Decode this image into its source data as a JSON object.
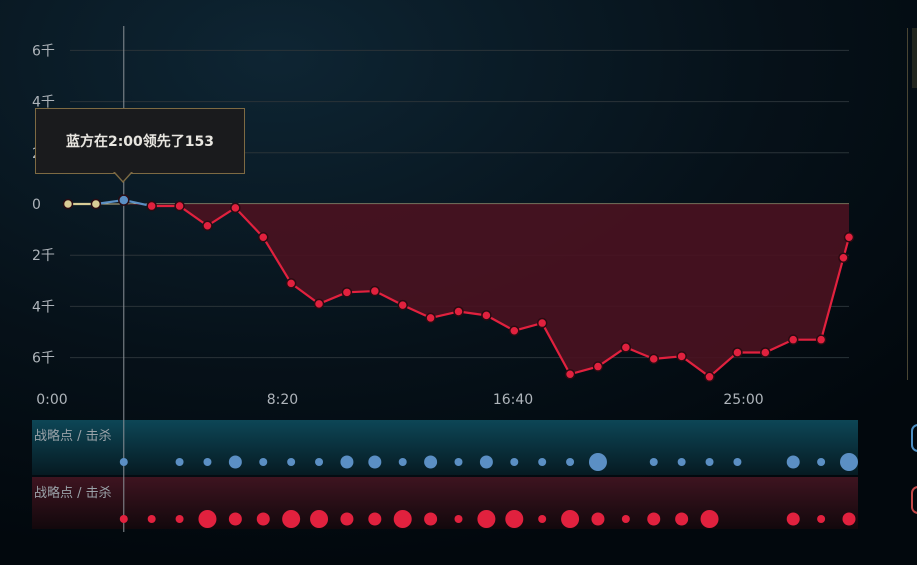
{
  "tooltip": {
    "text": "蓝方在2:00领先了153"
  },
  "bands": {
    "blue_label": "战略点 / 击杀",
    "red_label": "战略点 / 击杀"
  },
  "colors": {
    "blue": "#5b8fc4",
    "red": "#e1213e",
    "red_fill": "#4a1220",
    "neutral_dot": "#d8cc96",
    "grid": "#2a3338"
  },
  "chart_data": {
    "type": "area",
    "x_unit": "minutes",
    "y_unit": "gold difference",
    "ylim": [
      -7000,
      7000
    ],
    "y_ticks": [
      {
        "value": 6000,
        "label": "6千"
      },
      {
        "value": 4000,
        "label": "4千"
      },
      {
        "value": 2000,
        "label": "2千"
      },
      {
        "value": 0,
        "label": "0"
      },
      {
        "value": -2000,
        "label": "2千"
      },
      {
        "value": -4000,
        "label": "4千"
      },
      {
        "value": -6000,
        "label": "6千"
      }
    ],
    "x_ticks": [
      {
        "value": 0,
        "label": "0:00"
      },
      {
        "value": 8.333,
        "label": "8:20"
      },
      {
        "value": 16.667,
        "label": "16:40"
      },
      {
        "value": 25,
        "label": "25:00"
      }
    ],
    "xlim": [
      0,
      28.8
    ],
    "highlight_x": 2,
    "points": [
      {
        "x": 0,
        "y": 0
      },
      {
        "x": 1,
        "y": 0
      },
      {
        "x": 2,
        "y": 153
      },
      {
        "x": 3,
        "y": -80
      },
      {
        "x": 4,
        "y": -80
      },
      {
        "x": 5,
        "y": -850
      },
      {
        "x": 6,
        "y": -150
      },
      {
        "x": 7,
        "y": -1300
      },
      {
        "x": 8,
        "y": -3100
      },
      {
        "x": 9,
        "y": -3900
      },
      {
        "x": 10,
        "y": -3450
      },
      {
        "x": 11,
        "y": -3400
      },
      {
        "x": 12,
        "y": -3950
      },
      {
        "x": 13,
        "y": -4450
      },
      {
        "x": 14,
        "y": -4200
      },
      {
        "x": 15,
        "y": -4350
      },
      {
        "x": 16,
        "y": -4950
      },
      {
        "x": 17,
        "y": -4650
      },
      {
        "x": 18,
        "y": -6650
      },
      {
        "x": 19,
        "y": -6350
      },
      {
        "x": 20,
        "y": -5600
      },
      {
        "x": 21,
        "y": -6050
      },
      {
        "x": 22,
        "y": -5950
      },
      {
        "x": 23,
        "y": -6750
      },
      {
        "x": 24,
        "y": -5800
      },
      {
        "x": 25,
        "y": -5800
      },
      {
        "x": 26,
        "y": -5300
      },
      {
        "x": 27,
        "y": -5300
      },
      {
        "x": 27.8,
        "y": -2100
      },
      {
        "x": 28,
        "y": -1300
      }
    ],
    "blue_events": [
      {
        "x": 2,
        "size": 1
      },
      {
        "x": 4,
        "size": 1
      },
      {
        "x": 5,
        "size": 1
      },
      {
        "x": 6,
        "size": 2
      },
      {
        "x": 7,
        "size": 1
      },
      {
        "x": 8,
        "size": 1
      },
      {
        "x": 9,
        "size": 1
      },
      {
        "x": 10,
        "size": 2
      },
      {
        "x": 11,
        "size": 2
      },
      {
        "x": 12,
        "size": 1
      },
      {
        "x": 13,
        "size": 2
      },
      {
        "x": 14,
        "size": 1
      },
      {
        "x": 15,
        "size": 2
      },
      {
        "x": 16,
        "size": 1
      },
      {
        "x": 17,
        "size": 1
      },
      {
        "x": 18,
        "size": 1
      },
      {
        "x": 19,
        "size": 3
      },
      {
        "x": 21,
        "size": 1
      },
      {
        "x": 22,
        "size": 1
      },
      {
        "x": 23,
        "size": 1
      },
      {
        "x": 24,
        "size": 1
      },
      {
        "x": 26,
        "size": 2
      },
      {
        "x": 27,
        "size": 1
      },
      {
        "x": 28,
        "size": 3
      }
    ],
    "red_events": [
      {
        "x": 2,
        "size": 1
      },
      {
        "x": 3,
        "size": 1
      },
      {
        "x": 4,
        "size": 1
      },
      {
        "x": 5,
        "size": 3
      },
      {
        "x": 6,
        "size": 2
      },
      {
        "x": 7,
        "size": 2
      },
      {
        "x": 8,
        "size": 3
      },
      {
        "x": 9,
        "size": 3
      },
      {
        "x": 10,
        "size": 2
      },
      {
        "x": 11,
        "size": 2
      },
      {
        "x": 12,
        "size": 3
      },
      {
        "x": 13,
        "size": 2
      },
      {
        "x": 14,
        "size": 1
      },
      {
        "x": 15,
        "size": 3
      },
      {
        "x": 16,
        "size": 3
      },
      {
        "x": 17,
        "size": 1
      },
      {
        "x": 18,
        "size": 3
      },
      {
        "x": 19,
        "size": 2
      },
      {
        "x": 20,
        "size": 1
      },
      {
        "x": 21,
        "size": 2
      },
      {
        "x": 22,
        "size": 2
      },
      {
        "x": 23,
        "size": 3
      },
      {
        "x": 26,
        "size": 2
      },
      {
        "x": 27,
        "size": 1
      },
      {
        "x": 28,
        "size": 2
      }
    ]
  }
}
